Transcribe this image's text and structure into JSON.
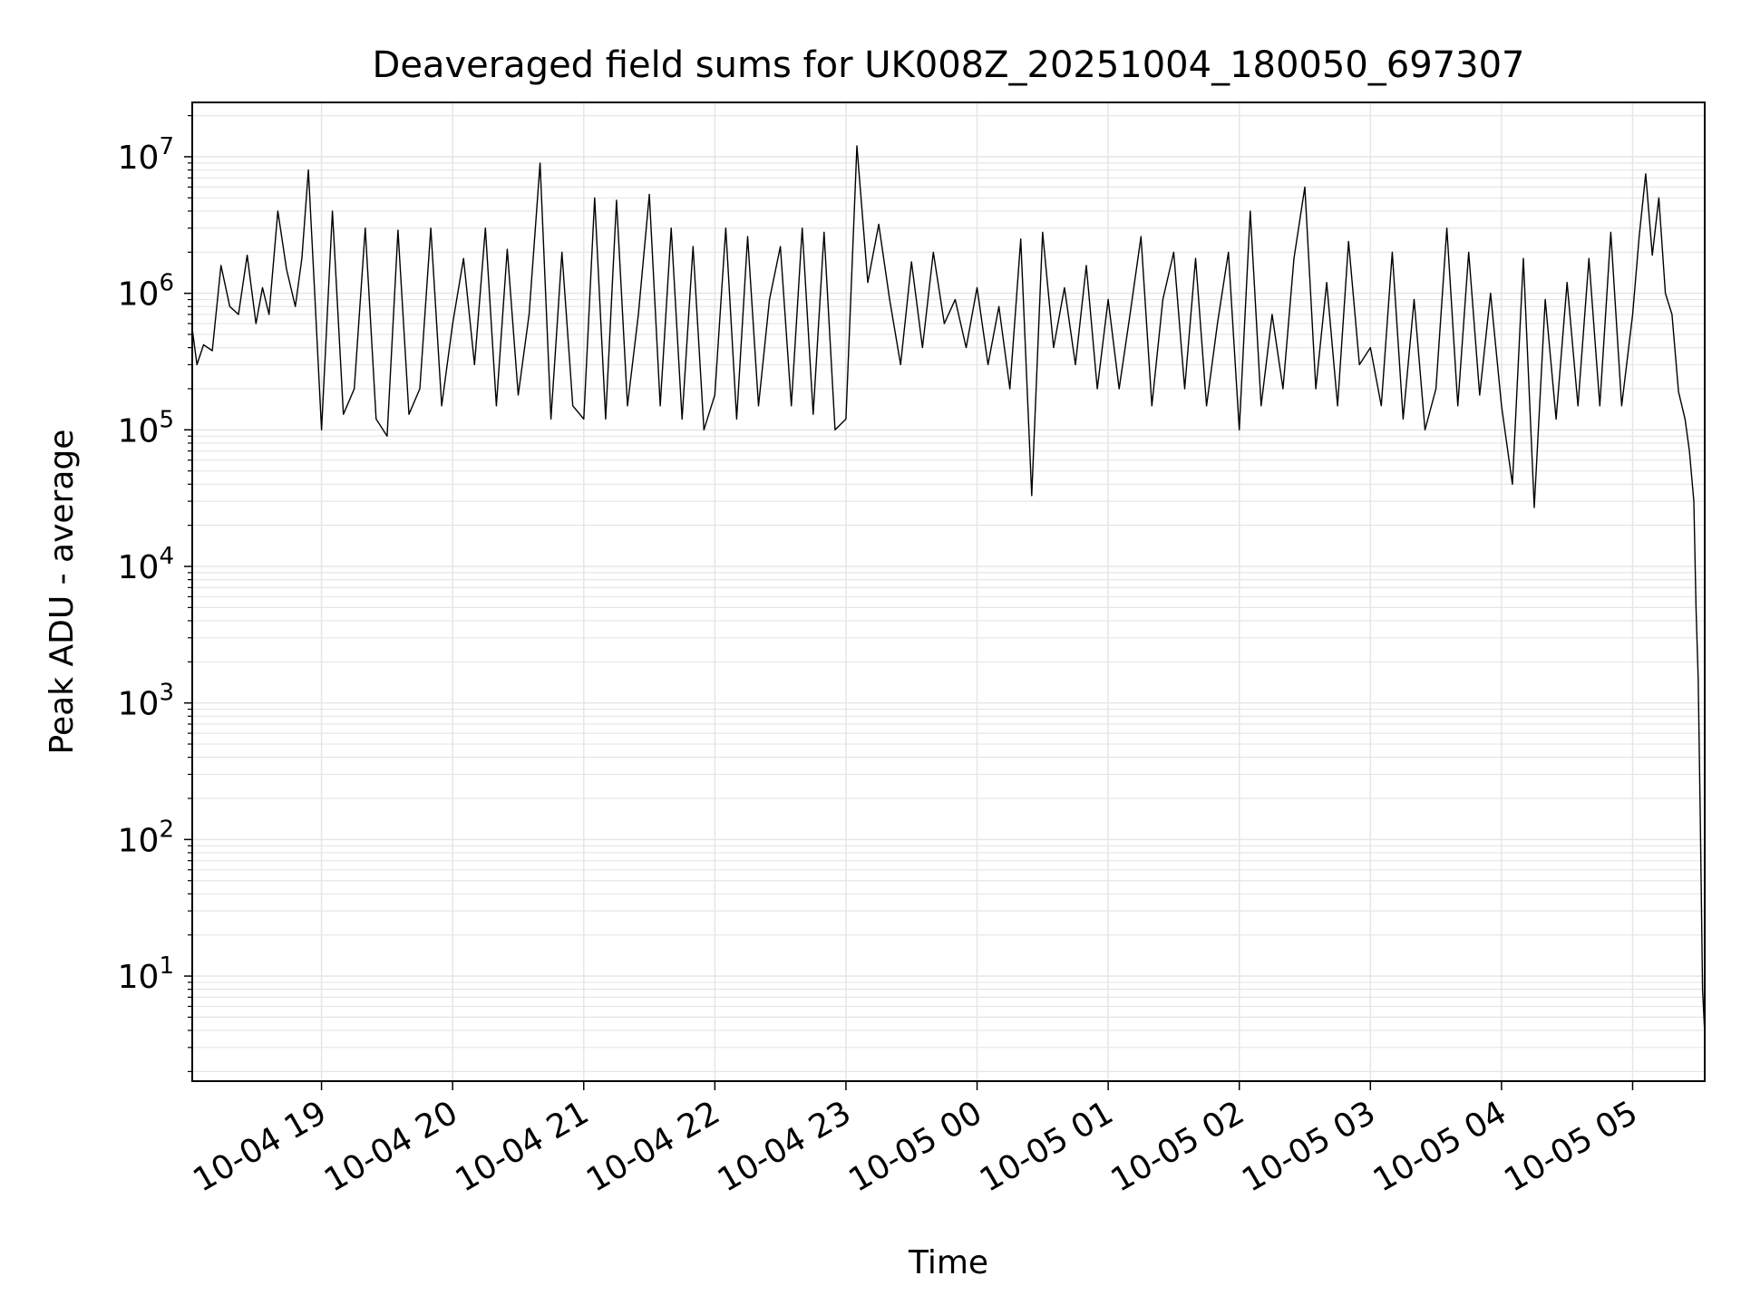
{
  "chart_data": {
    "type": "line",
    "title": "Deaveraged field sums for UK008Z_20251004_180050_697307",
    "xlabel": "Time",
    "ylabel": "Peak ADU - average",
    "yscale": "log",
    "ylim": [
      1.7,
      25000000
    ],
    "xlim": [
      "2025-10-04 18:00:50",
      "2025-10-05 05:33:00"
    ],
    "grid": true,
    "minor_grid": true,
    "line_color": "#000000",
    "grid_color": "#e6e6e6",
    "x_ticks": [
      {
        "t": "2025-10-04 19:00",
        "label": "10-04 19"
      },
      {
        "t": "2025-10-04 20:00",
        "label": "10-04 20"
      },
      {
        "t": "2025-10-04 21:00",
        "label": "10-04 21"
      },
      {
        "t": "2025-10-04 22:00",
        "label": "10-04 22"
      },
      {
        "t": "2025-10-04 23:00",
        "label": "10-04 23"
      },
      {
        "t": "2025-10-05 00:00",
        "label": "10-05 00"
      },
      {
        "t": "2025-10-05 01:00",
        "label": "10-05 01"
      },
      {
        "t": "2025-10-05 02:00",
        "label": "10-05 02"
      },
      {
        "t": "2025-10-05 03:00",
        "label": "10-05 03"
      },
      {
        "t": "2025-10-05 04:00",
        "label": "10-05 04"
      },
      {
        "t": "2025-10-05 05:00",
        "label": "10-05 05"
      }
    ],
    "y_ticks": [
      {
        "v": 10,
        "base": "10",
        "exp": "1"
      },
      {
        "v": 100,
        "base": "10",
        "exp": "2"
      },
      {
        "v": 1000,
        "base": "10",
        "exp": "3"
      },
      {
        "v": 10000,
        "base": "10",
        "exp": "4"
      },
      {
        "v": 100000,
        "base": "10",
        "exp": "5"
      },
      {
        "v": 1000000,
        "base": "10",
        "exp": "6"
      },
      {
        "v": 10000000,
        "base": "10",
        "exp": "7"
      }
    ],
    "series": [
      {
        "x": [
          "2025-10-04 18:00:50",
          "2025-10-04 18:03",
          "2025-10-04 18:06",
          "2025-10-04 18:10",
          "2025-10-04 18:14",
          "2025-10-04 18:18",
          "2025-10-04 18:22",
          "2025-10-04 18:26",
          "2025-10-04 18:30",
          "2025-10-04 18:33",
          "2025-10-04 18:36",
          "2025-10-04 18:40",
          "2025-10-04 18:44",
          "2025-10-04 18:48",
          "2025-10-04 18:51",
          "2025-10-04 18:54",
          "2025-10-04 18:57",
          "2025-10-04 19:00",
          "2025-10-04 19:05",
          "2025-10-04 19:10",
          "2025-10-04 19:15",
          "2025-10-04 19:20",
          "2025-10-04 19:25",
          "2025-10-04 19:30",
          "2025-10-04 19:35",
          "2025-10-04 19:40",
          "2025-10-04 19:45",
          "2025-10-04 19:50",
          "2025-10-04 19:55",
          "2025-10-04 20:00",
          "2025-10-04 20:05",
          "2025-10-04 20:10",
          "2025-10-04 20:15",
          "2025-10-04 20:20",
          "2025-10-04 20:25",
          "2025-10-04 20:30",
          "2025-10-04 20:35",
          "2025-10-04 20:40",
          "2025-10-04 20:45",
          "2025-10-04 20:50",
          "2025-10-04 20:55",
          "2025-10-04 21:00",
          "2025-10-04 21:05",
          "2025-10-04 21:10",
          "2025-10-04 21:15",
          "2025-10-04 21:20",
          "2025-10-04 21:25",
          "2025-10-04 21:30",
          "2025-10-04 21:35",
          "2025-10-04 21:40",
          "2025-10-04 21:45",
          "2025-10-04 21:50",
          "2025-10-04 21:55",
          "2025-10-04 22:00",
          "2025-10-04 22:05",
          "2025-10-04 22:10",
          "2025-10-04 22:15",
          "2025-10-04 22:20",
          "2025-10-04 22:25",
          "2025-10-04 22:30",
          "2025-10-04 22:35",
          "2025-10-04 22:40",
          "2025-10-04 22:45",
          "2025-10-04 22:50",
          "2025-10-04 22:55",
          "2025-10-04 23:00",
          "2025-10-04 23:05",
          "2025-10-04 23:10",
          "2025-10-04 23:15",
          "2025-10-04 23:20",
          "2025-10-04 23:25",
          "2025-10-04 23:30",
          "2025-10-04 23:35",
          "2025-10-04 23:40",
          "2025-10-04 23:45",
          "2025-10-04 23:50",
          "2025-10-04 23:55",
          "2025-10-05 00:00",
          "2025-10-05 00:05",
          "2025-10-05 00:10",
          "2025-10-05 00:15",
          "2025-10-05 00:20",
          "2025-10-05 00:25",
          "2025-10-05 00:30",
          "2025-10-05 00:35",
          "2025-10-05 00:40",
          "2025-10-05 00:45",
          "2025-10-05 00:50",
          "2025-10-05 00:55",
          "2025-10-05 01:00",
          "2025-10-05 01:05",
          "2025-10-05 01:10",
          "2025-10-05 01:15",
          "2025-10-05 01:20",
          "2025-10-05 01:25",
          "2025-10-05 01:30",
          "2025-10-05 01:35",
          "2025-10-05 01:40",
          "2025-10-05 01:45",
          "2025-10-05 01:50",
          "2025-10-05 01:55",
          "2025-10-05 02:00",
          "2025-10-05 02:05",
          "2025-10-05 02:10",
          "2025-10-05 02:15",
          "2025-10-05 02:20",
          "2025-10-05 02:25",
          "2025-10-05 02:30",
          "2025-10-05 02:35",
          "2025-10-05 02:40",
          "2025-10-05 02:45",
          "2025-10-05 02:50",
          "2025-10-05 02:55",
          "2025-10-05 03:00",
          "2025-10-05 03:05",
          "2025-10-05 03:10",
          "2025-10-05 03:15",
          "2025-10-05 03:20",
          "2025-10-05 03:25",
          "2025-10-05 03:30",
          "2025-10-05 03:35",
          "2025-10-05 03:40",
          "2025-10-05 03:45",
          "2025-10-05 03:50",
          "2025-10-05 03:55",
          "2025-10-05 04:00",
          "2025-10-05 04:05",
          "2025-10-05 04:10",
          "2025-10-05 04:15",
          "2025-10-05 04:20",
          "2025-10-05 04:25",
          "2025-10-05 04:30",
          "2025-10-05 04:35",
          "2025-10-05 04:40",
          "2025-10-05 04:45",
          "2025-10-05 04:50",
          "2025-10-05 04:55",
          "2025-10-05 05:00",
          "2025-10-05 05:03",
          "2025-10-05 05:06",
          "2025-10-05 05:09",
          "2025-10-05 05:12",
          "2025-10-05 05:15",
          "2025-10-05 05:18",
          "2025-10-05 05:21",
          "2025-10-05 05:24",
          "2025-10-05 05:26",
          "2025-10-05 05:28",
          "2025-10-05 05:29",
          "2025-10-05 05:30",
          "2025-10-05 05:31",
          "2025-10-05 05:32",
          "2025-10-05 05:33"
        ],
        "y": [
          550000,
          300000,
          420000,
          380000,
          1600000,
          800000,
          700000,
          1900000,
          600000,
          1100000,
          700000,
          4000000,
          1500000,
          800000,
          1800000,
          8000000,
          900000,
          100000,
          4000000,
          130000,
          200000,
          3000000,
          120000,
          90000,
          2900000,
          130000,
          200000,
          3000000,
          150000,
          600000,
          1800000,
          300000,
          3000000,
          150000,
          2100000,
          180000,
          700000,
          9000000,
          120000,
          2000000,
          150000,
          120000,
          5000000,
          120000,
          4800000,
          150000,
          700000,
          5300000,
          150000,
          3000000,
          120000,
          2200000,
          100000,
          180000,
          3000000,
          120000,
          2600000,
          150000,
          900000,
          2200000,
          150000,
          3000000,
          130000,
          2800000,
          100000,
          120000,
          12000000,
          1200000,
          3200000,
          900000,
          300000,
          1700000,
          400000,
          2000000,
          600000,
          900000,
          400000,
          1100000,
          300000,
          800000,
          200000,
          2500000,
          33000,
          2800000,
          400000,
          1100000,
          300000,
          1600000,
          200000,
          900000,
          200000,
          700000,
          2600000,
          150000,
          900000,
          2000000,
          200000,
          1800000,
          150000,
          600000,
          2000000,
          100000,
          4000000,
          150000,
          700000,
          200000,
          1800000,
          6000000,
          200000,
          1200000,
          150000,
          2400000,
          300000,
          400000,
          150000,
          2000000,
          120000,
          900000,
          100000,
          200000,
          3000000,
          150000,
          2000000,
          180000,
          1000000,
          150000,
          40000,
          1800000,
          27000,
          900000,
          120000,
          1200000,
          150000,
          1800000,
          150000,
          2800000,
          150000,
          700000,
          2600000,
          7500000,
          1900000,
          5000000,
          1000000,
          700000,
          190000,
          120000,
          70000,
          30000,
          5000,
          1500,
          130,
          8,
          3.8
        ]
      }
    ]
  }
}
